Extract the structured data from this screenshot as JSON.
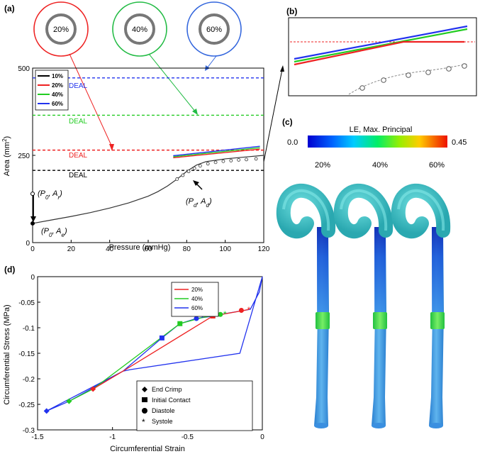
{
  "panel_labels": {
    "a": "(a)",
    "b": "(b)",
    "c": "(c)",
    "d": "(d)"
  },
  "colors": {
    "s20": "#ee2222",
    "s40": "#22cc22",
    "s60": "#2233ee",
    "s10": "#000000",
    "model": "#333333",
    "vessel": "#44c0c8"
  },
  "rings": [
    {
      "label": "20%",
      "color": "#ee2222"
    },
    {
      "label": "40%",
      "color": "#22bb44"
    },
    {
      "label": "60%",
      "color": "#3366dd"
    }
  ],
  "chart_data": [
    {
      "panel": "a",
      "type": "line",
      "xlabel": "Pressure (mmHg)",
      "ylabel": "Area (mm",
      "ylabel_sup": "2",
      "ylabel_end": ")",
      "xlim": [
        0,
        120
      ],
      "ylim": [
        0,
        500
      ],
      "xticks": [
        0,
        20,
        40,
        60,
        80,
        100,
        120
      ],
      "yticks": [
        0,
        250,
        500
      ],
      "ytick_labels": [
        "0",
        "250",
        "500"
      ],
      "legend": [
        "10%",
        "20%",
        "40%",
        "60%"
      ],
      "deal_label": "DEAL",
      "deal_lines": [
        {
          "name": "10%",
          "value": 207,
          "color": "#000000"
        },
        {
          "name": "20%",
          "value": 265,
          "color": "#ee2222"
        },
        {
          "name": "40%",
          "value": 365,
          "color": "#22cc22"
        },
        {
          "name": "60%",
          "value": 472,
          "color": "#2233ee"
        }
      ],
      "model_curve": {
        "x": [
          0,
          10,
          20,
          30,
          40,
          50,
          60,
          65,
          70,
          75,
          80,
          85,
          90,
          100,
          110,
          120
        ],
        "y": [
          55,
          65,
          75,
          86,
          99,
          114,
          133,
          146,
          162,
          182,
          204,
          222,
          232,
          240,
          245,
          250
        ]
      },
      "exp_points": {
        "x": [
          75,
          78,
          81,
          84,
          87,
          91,
          95,
          99,
          103,
          107,
          111,
          116
        ],
        "y": [
          182,
          193,
          204,
          213,
          220,
          226,
          230,
          233,
          235,
          237,
          238,
          240
        ]
      },
      "stent_series": [
        {
          "name": "20%",
          "x": [
            73,
            118
          ],
          "y": [
            243,
            268
          ],
          "color": "#ee2222"
        },
        {
          "name": "40%",
          "x": [
            73,
            118
          ],
          "y": [
            246,
            272
          ],
          "color": "#22cc22"
        },
        {
          "name": "60%",
          "x": [
            73,
            118
          ],
          "y": [
            249,
            276
          ],
          "color": "#2233ee"
        }
      ],
      "annotations": {
        "p0ar": [
          "(P",
          "0",
          ", A",
          "r",
          ")"
        ],
        "p0ae": [
          "(P",
          "0",
          ", A",
          "e",
          ")"
        ],
        "pdad": [
          "(P",
          "d",
          ", A",
          "d",
          ")"
        ]
      }
    },
    {
      "panel": "d",
      "type": "line",
      "xlabel": "Circumferential Strain",
      "ylabel": "Circumferential Stress (MPa)",
      "xlim": [
        -1.5,
        0
      ],
      "ylim": [
        -0.3,
        0
      ],
      "xticks": [
        -1.5,
        -1,
        -0.5,
        0
      ],
      "xtick_labels": [
        "-1.5",
        "-1",
        "-0.5",
        "0"
      ],
      "yticks": [
        -0.3,
        -0.25,
        -0.2,
        -0.15,
        -0.1,
        -0.05,
        0
      ],
      "ytick_labels": [
        "-0.3",
        "-0.25",
        "-0.2",
        "-0.15",
        "-0.1",
        "-0.05",
        "0"
      ],
      "legend": [
        "20%",
        "40%",
        "60%"
      ],
      "series": [
        {
          "name": "60%",
          "color": "#2233ee",
          "x": [
            0,
            -0.15,
            -0.88,
            -0.93,
            -1.44,
            -1.29,
            -0.93,
            -0.67,
            -0.55,
            -0.44,
            -0.4,
            -0.34,
            -0.28,
            -0.2,
            -0.14,
            -0.08,
            -0.02,
            0
          ],
          "y": [
            0,
            -0.15,
            -0.182,
            -0.185,
            -0.263,
            -0.244,
            -0.185,
            -0.12,
            -0.092,
            -0.082,
            -0.08,
            -0.078,
            -0.074,
            -0.07,
            -0.067,
            -0.064,
            -0.03,
            0
          ]
        },
        {
          "name": "40%",
          "color": "#22cc22",
          "x": [
            -1.29,
            -1.13,
            -0.55,
            -0.4,
            -0.27
          ],
          "y": [
            -0.244,
            -0.22,
            -0.092,
            -0.08,
            -0.073
          ]
        },
        {
          "name": "20%",
          "color": "#ee2222",
          "x": [
            -1.13,
            -0.93,
            -0.33,
            -0.12,
            -0.09
          ],
          "y": [
            -0.22,
            -0.185,
            -0.077,
            -0.066,
            -0.064
          ]
        }
      ],
      "markers": [
        {
          "shape": "diamond",
          "x": -1.44,
          "y": -0.263,
          "color": "#2233ee"
        },
        {
          "shape": "diamond",
          "x": -1.29,
          "y": -0.244,
          "color": "#22cc22"
        },
        {
          "shape": "diamond",
          "x": -1.13,
          "y": -0.22,
          "color": "#ee2222"
        },
        {
          "shape": "square",
          "x": -0.67,
          "y": -0.12,
          "color": "#2233ee"
        },
        {
          "shape": "square",
          "x": -0.55,
          "y": -0.092,
          "color": "#22cc22"
        },
        {
          "shape": "square",
          "x": -0.33,
          "y": -0.077,
          "color": "#ee2222"
        },
        {
          "shape": "circle",
          "x": -0.44,
          "y": -0.082,
          "color": "#2233ee"
        },
        {
          "shape": "circle",
          "x": -0.28,
          "y": -0.074,
          "color": "#22cc22"
        },
        {
          "shape": "circle",
          "x": -0.14,
          "y": -0.066,
          "color": "#ee2222"
        },
        {
          "shape": "star",
          "x": -0.4,
          "y": -0.08,
          "color": "#2233ee"
        },
        {
          "shape": "star",
          "x": -0.25,
          "y": -0.072,
          "color": "#22cc22"
        },
        {
          "shape": "star",
          "x": -0.09,
          "y": -0.064,
          "color": "#ee2222"
        }
      ],
      "marker_legend": [
        "End Crimp",
        "Initial Contact",
        "Diastole",
        "Systole"
      ]
    }
  ],
  "panel_c": {
    "colorbar_title": "LE, Max. Principal",
    "min_label": "0.0",
    "max_label": "0.45",
    "columns": [
      "20%",
      "40%",
      "60%"
    ]
  }
}
